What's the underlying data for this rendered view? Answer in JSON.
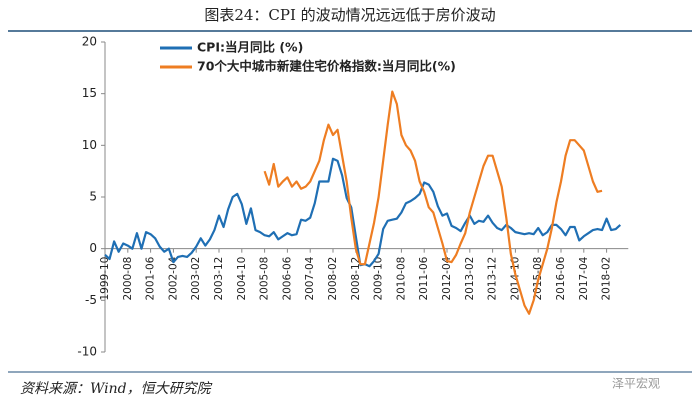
{
  "chart_data": {
    "type": "line",
    "title": "图表24：CPI 的波动情况远远低于房价波动",
    "source": "资料来源：Wind，恒大研究院",
    "watermark": "泽平宏观",
    "categories": [
      "1999-10",
      null,
      null,
      null,
      null,
      "2000-08",
      null,
      null,
      null,
      null,
      "2001-06",
      null,
      null,
      null,
      null,
      "2002-04",
      null,
      null,
      null,
      null,
      "2003-02",
      null,
      null,
      null,
      null,
      "2003-12",
      null,
      null,
      null,
      null,
      "2004-10",
      null,
      null,
      null,
      null,
      "2005-08",
      null,
      null,
      null,
      null,
      "2006-06",
      null,
      null,
      null,
      null,
      "2007-04",
      null,
      null,
      null,
      null,
      "2008-02",
      null,
      null,
      null,
      null,
      "2008-12",
      null,
      null,
      null,
      null,
      "2009-10",
      null,
      null,
      null,
      null,
      "2010-08",
      null,
      null,
      null,
      null,
      "2011-06",
      null,
      null,
      null,
      null,
      "2012-04",
      null,
      null,
      null,
      null,
      "2013-02",
      null,
      null,
      null,
      null,
      "2013-12",
      null,
      null,
      null,
      null,
      "2014-10",
      null,
      null,
      null,
      null,
      "2015-08",
      null,
      null,
      null,
      null,
      "2016-06",
      null,
      null,
      null,
      null,
      "2017-04",
      null,
      null,
      null,
      null,
      "2018-02",
      null,
      null,
      null
    ],
    "series": [
      {
        "name": "CPI:当月同比 (%)",
        "color": "#1f6fb4",
        "values": [
          -0.6,
          -1,
          0.7,
          -0.3,
          0.5,
          0.3,
          0,
          1.5,
          0,
          1.6,
          1.4,
          1,
          0.2,
          -0.3,
          0,
          -1.3,
          -0.8,
          -0.7,
          -0.8,
          -0.4,
          0.2,
          1,
          0.3,
          0.9,
          1.8,
          3.2,
          2.1,
          3.8,
          5,
          5.3,
          4.3,
          2.4,
          3.9,
          1.8,
          1.6,
          1.3,
          1.2,
          1.6,
          0.9,
          1.2,
          1.5,
          1.3,
          1.4,
          2.8,
          2.7,
          3,
          4.4,
          6.5,
          6.5,
          6.5,
          8.7,
          8.5,
          7.1,
          4.9,
          4,
          1.2,
          -1.6,
          -1.5,
          -1.7,
          -1.2,
          -0.5,
          1.9,
          2.7,
          2.8,
          2.9,
          3.5,
          4.4,
          4.6,
          4.9,
          5.3,
          6.4,
          6.2,
          5.5,
          4.1,
          3.2,
          3.4,
          2.2,
          2,
          1.7,
          2.5,
          3.2,
          2.4,
          2.7,
          2.6,
          3.2,
          2.5,
          2,
          1.8,
          2.3,
          2,
          1.6,
          1.5,
          1.4,
          1.5,
          1.4,
          2,
          1.3,
          1.6,
          2.3,
          2.3,
          1.9,
          1.3,
          2.1,
          2.1,
          0.8,
          1.2,
          1.5,
          1.8,
          1.9,
          1.8,
          2.9,
          1.8,
          1.9,
          2.3
        ]
      },
      {
        "name": "70个大中城市新建住宅价格指数:当月同比(%)",
        "color": "#ee7d22",
        "values": [
          null,
          null,
          null,
          null,
          null,
          null,
          null,
          null,
          null,
          null,
          null,
          null,
          null,
          null,
          null,
          null,
          null,
          null,
          null,
          null,
          null,
          null,
          null,
          null,
          null,
          null,
          null,
          null,
          null,
          null,
          null,
          null,
          null,
          null,
          null,
          7.5,
          6.2,
          8.2,
          6,
          6.5,
          6.9,
          6,
          6.5,
          5.8,
          6,
          6.5,
          7.5,
          8.5,
          10.5,
          12,
          11,
          11.5,
          9,
          6.5,
          3,
          0,
          -1.5,
          -1.5,
          0.5,
          2.5,
          5,
          8.5,
          12,
          15.2,
          14,
          11,
          10,
          9.5,
          8.5,
          6.5,
          5.5,
          4,
          3.5,
          2,
          0.5,
          -1.2,
          -1.3,
          -0.6,
          0.5,
          1.5,
          3.5,
          5,
          6.5,
          8,
          9,
          9,
          7.5,
          6,
          3,
          -0.5,
          -2.5,
          -4,
          -5.5,
          -6.3,
          -5,
          -3,
          -1.5,
          0,
          2,
          4.5,
          6.5,
          9,
          10.5,
          10.5,
          10,
          9.5,
          8,
          6.5,
          5.5,
          5.6,
          null,
          null,
          null,
          null
        ]
      }
    ],
    "ylim": [
      -10,
      20
    ],
    "yticks": [
      -10,
      -5,
      0,
      5,
      10,
      15,
      20
    ],
    "grid": false
  }
}
